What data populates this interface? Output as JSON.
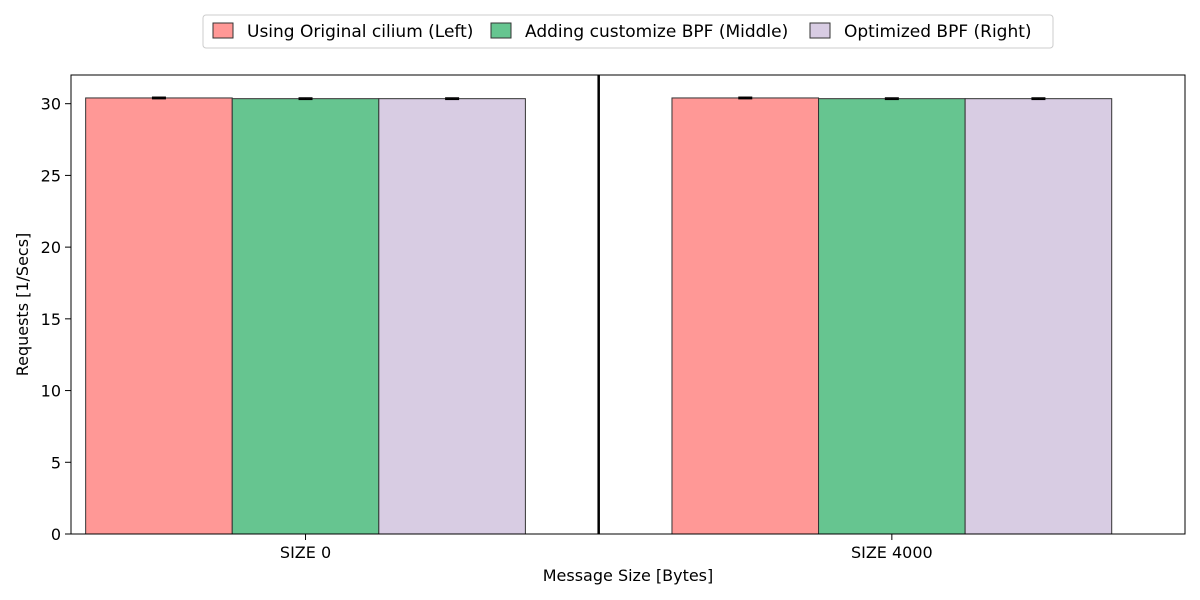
{
  "chart_data": {
    "type": "bar",
    "categories": [
      "SIZE 0",
      "SIZE 4000"
    ],
    "series": [
      {
        "name": "Using Original cilium (Left)",
        "values": [
          30.4,
          30.4
        ],
        "error": [
          0.05,
          0.05
        ],
        "color": "#ff9896"
      },
      {
        "name": "Adding customize BPF (Middle)",
        "values": [
          30.35,
          30.35
        ],
        "error": [
          0.05,
          0.05
        ],
        "color": "#66c590"
      },
      {
        "name": "Optimized BPF (Right)",
        "values": [
          30.35,
          30.35
        ],
        "error": [
          0.05,
          0.05
        ],
        "color": "#d8cce3"
      }
    ],
    "title": "",
    "xlabel": "Message Size [Bytes]",
    "ylabel": "Requests [1/Secs]",
    "ylim": [
      0,
      32
    ],
    "yticks": [
      0,
      5,
      10,
      15,
      20,
      25,
      30
    ],
    "grid": false,
    "legend_position": "top-center",
    "divider_between_groups": true
  }
}
